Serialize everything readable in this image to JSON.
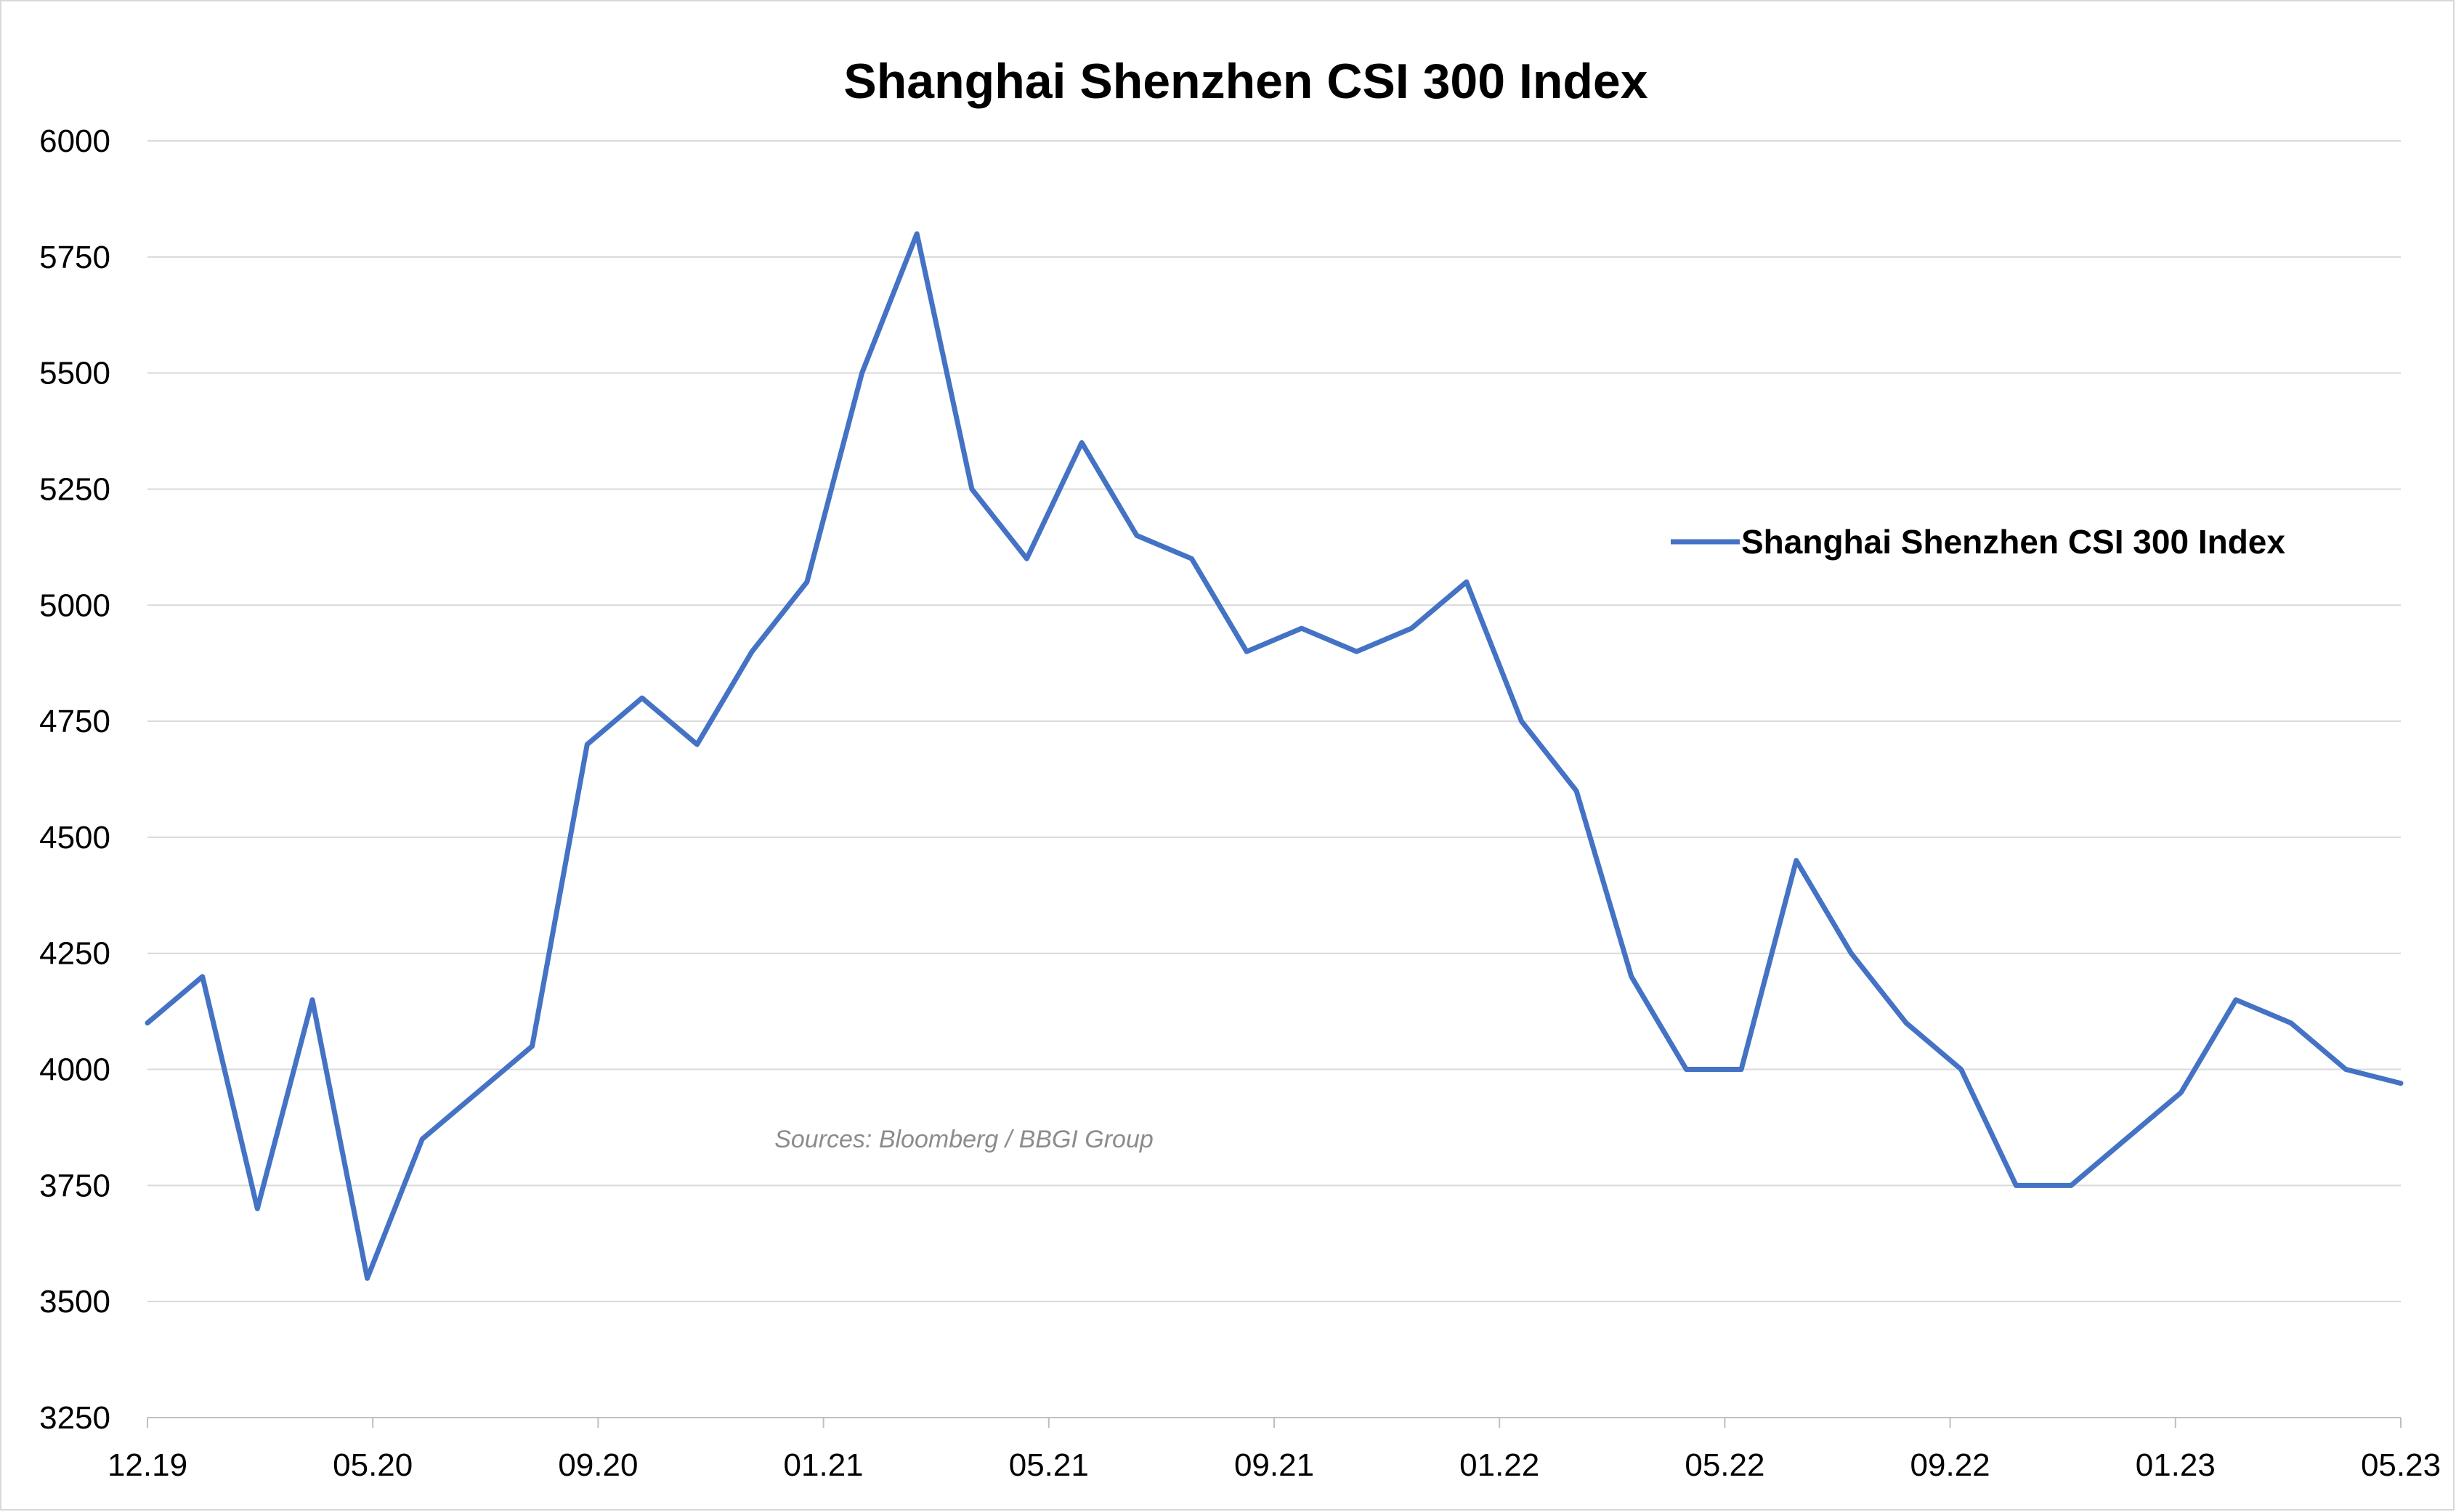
{
  "chart_data": {
    "type": "line",
    "title": "Shanghai Shenzhen CSI 300 Index",
    "xlabel": "",
    "ylabel": "",
    "source": "Sources: Bloomberg / BBGI Group",
    "ylim": [
      3250,
      6000
    ],
    "yticks": [
      "3250",
      "3500",
      "3750",
      "4000",
      "4250",
      "4500",
      "4750",
      "5000",
      "5250",
      "5500",
      "5750",
      "6000"
    ],
    "xticks": [
      "12.19",
      "05.20",
      "09.20",
      "01.21",
      "05.21",
      "09.21",
      "01.22",
      "05.22",
      "09.22",
      "01.23",
      "05.23"
    ],
    "xlim": [
      "2019-12",
      "2023-05"
    ],
    "grid": true,
    "legend_position": "right",
    "series": [
      {
        "name": "Shanghai Shenzhen CSI 300 Index",
        "color": "#4472c4",
        "x": [
          "2019-12",
          "2020-01",
          "2020-02",
          "2020-03",
          "2020-04",
          "2020-05",
          "2020-06",
          "2020-07",
          "2020-08",
          "2020-09",
          "2020-10",
          "2020-11",
          "2020-12",
          "2021-01",
          "2021-02",
          "2021-03",
          "2021-04",
          "2021-05",
          "2021-06",
          "2021-07",
          "2021-08",
          "2021-09",
          "2021-10",
          "2021-11",
          "2021-12",
          "2022-01",
          "2022-02",
          "2022-03",
          "2022-04",
          "2022-05",
          "2022-06",
          "2022-07",
          "2022-08",
          "2022-09",
          "2022-10",
          "2022-11",
          "2022-12",
          "2023-01",
          "2023-02",
          "2023-03",
          "2023-04",
          "2023-05"
        ],
        "values": [
          4100,
          4200,
          3700,
          4150,
          3550,
          3850,
          3950,
          4050,
          4700,
          4800,
          4700,
          4900,
          5050,
          5500,
          5800,
          5250,
          5100,
          5350,
          5150,
          5100,
          4900,
          4950,
          4900,
          4950,
          5050,
          4750,
          4600,
          4200,
          4000,
          4000,
          4450,
          4250,
          4100,
          4000,
          3750,
          3750,
          3850,
          3950,
          4150,
          4100,
          4000,
          3970
        ]
      }
    ]
  }
}
